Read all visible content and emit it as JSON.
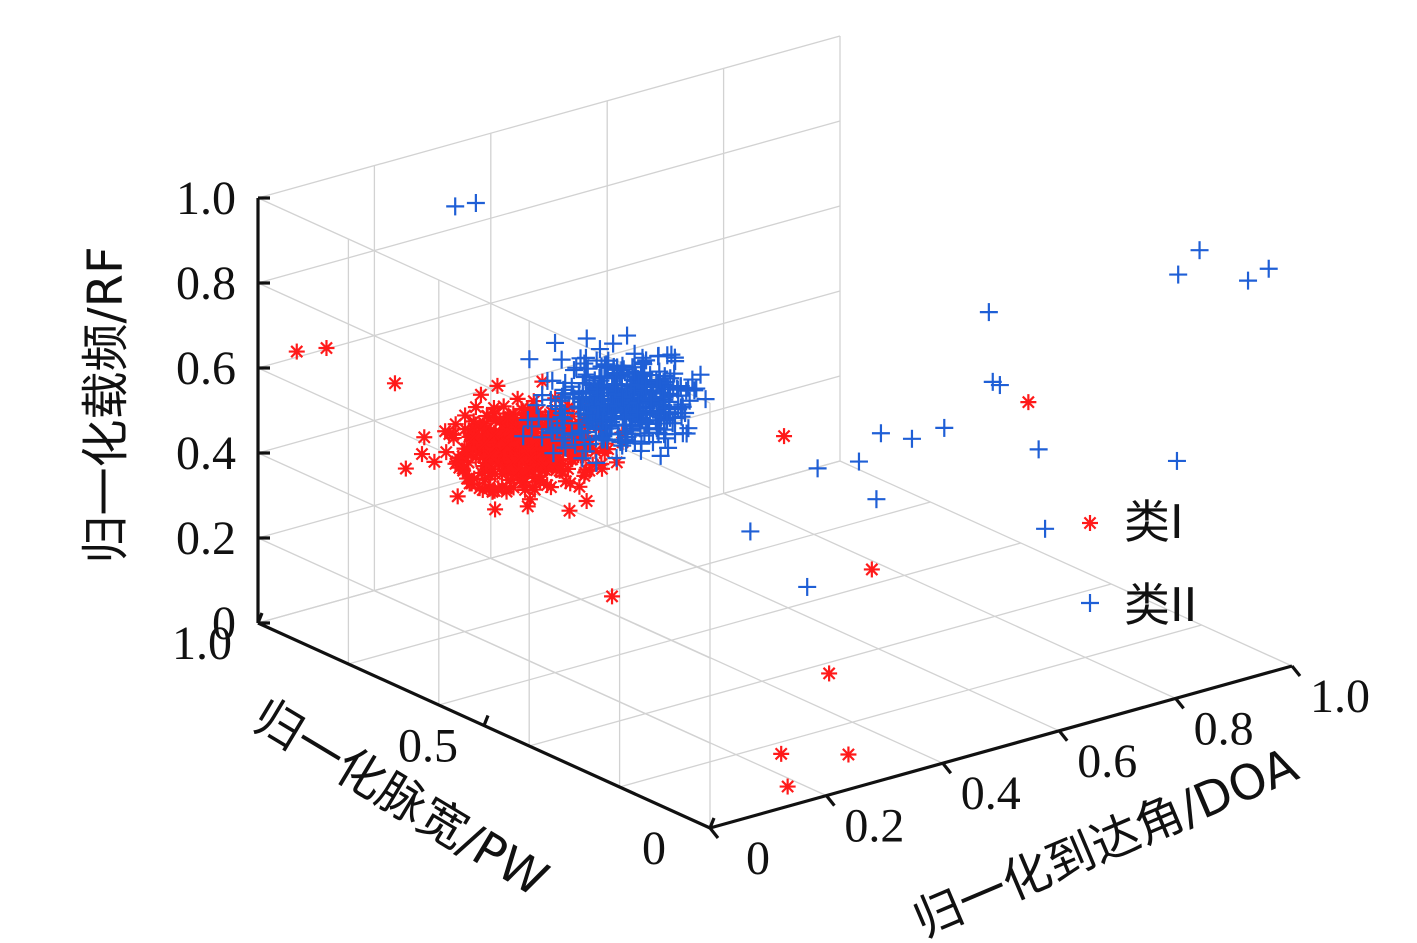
{
  "chart_data": {
    "type": "scatter3d",
    "zlabel": "归一化载频/RF",
    "ylabel": "归一化脉宽/PW",
    "xlabel": "归一化到达角/DOA",
    "x_range": [
      0,
      1
    ],
    "y_range": [
      0,
      1
    ],
    "z_range": [
      0,
      1
    ],
    "z_ticks": [
      "0",
      "0.2",
      "0.4",
      "0.6",
      "0.8",
      "1.0"
    ],
    "y_ticks": [
      "0",
      "0.5",
      "1.0"
    ],
    "x_ticks": [
      "0",
      "0.2",
      "0.4",
      "0.6",
      "0.8",
      "1.0"
    ],
    "grid": true,
    "legend_position": "right",
    "series": [
      {
        "name": "类I",
        "marker": "asterisk",
        "color": "#ff1a1a",
        "cluster": {
          "center": [
            0.26,
            0.74,
            0.44
          ],
          "spread": [
            0.05,
            0.05,
            0.04
          ],
          "count": 420
        },
        "outliers": [
          [
            0.02,
            0.94,
            0.66
          ],
          [
            0.04,
            0.9,
            0.68
          ],
          [
            0.08,
            0.8,
            0.63
          ],
          [
            0.12,
            0.63,
            0.4
          ],
          [
            0.78,
            0.3,
            0.56
          ],
          [
            0.5,
            0.48,
            0.5
          ],
          [
            0.48,
            0.26,
            0.3
          ],
          [
            0.22,
            0.5,
            0.22
          ],
          [
            0.36,
            0.2,
            0.13
          ],
          [
            0.2,
            0.1,
            0.05
          ],
          [
            0.3,
            0.08,
            0.02
          ],
          [
            0.18,
            0.06,
            0.0
          ]
        ]
      },
      {
        "name": "类II",
        "marker": "plus",
        "color": "#1f5fd6",
        "cluster": {
          "center": [
            0.37,
            0.67,
            0.54
          ],
          "spread": [
            0.05,
            0.05,
            0.045
          ],
          "count": 420
        },
        "outliers": [
          [
            0.3,
            0.95,
            0.89
          ],
          [
            0.32,
            0.93,
            0.9
          ],
          [
            0.82,
            0.02,
            0.98
          ],
          [
            0.88,
            0.05,
            1.0
          ],
          [
            0.65,
            0.22,
            0.86
          ],
          [
            0.96,
            0.0,
            0.95
          ],
          [
            0.94,
            0.02,
            0.92
          ],
          [
            0.68,
            0.25,
            0.67
          ],
          [
            0.7,
            0.26,
            0.65
          ],
          [
            0.72,
            0.2,
            0.52
          ],
          [
            0.88,
            0.1,
            0.48
          ],
          [
            0.55,
            0.33,
            0.56
          ],
          [
            0.58,
            0.3,
            0.55
          ],
          [
            0.62,
            0.28,
            0.57
          ],
          [
            0.48,
            0.38,
            0.48
          ],
          [
            0.52,
            0.34,
            0.5
          ],
          [
            0.38,
            0.4,
            0.36
          ],
          [
            0.55,
            0.34,
            0.4
          ],
          [
            0.7,
            0.16,
            0.36
          ],
          [
            0.4,
            0.3,
            0.27
          ],
          [
            0.38,
            0.6,
            0.62
          ],
          [
            0.42,
            0.62,
            0.61
          ]
        ]
      }
    ],
    "legend": [
      {
        "label": "类I",
        "symbol": "*",
        "color": "#ff1a1a"
      },
      {
        "label": "类II",
        "symbol": "+",
        "color": "#1f5fd6"
      }
    ]
  }
}
